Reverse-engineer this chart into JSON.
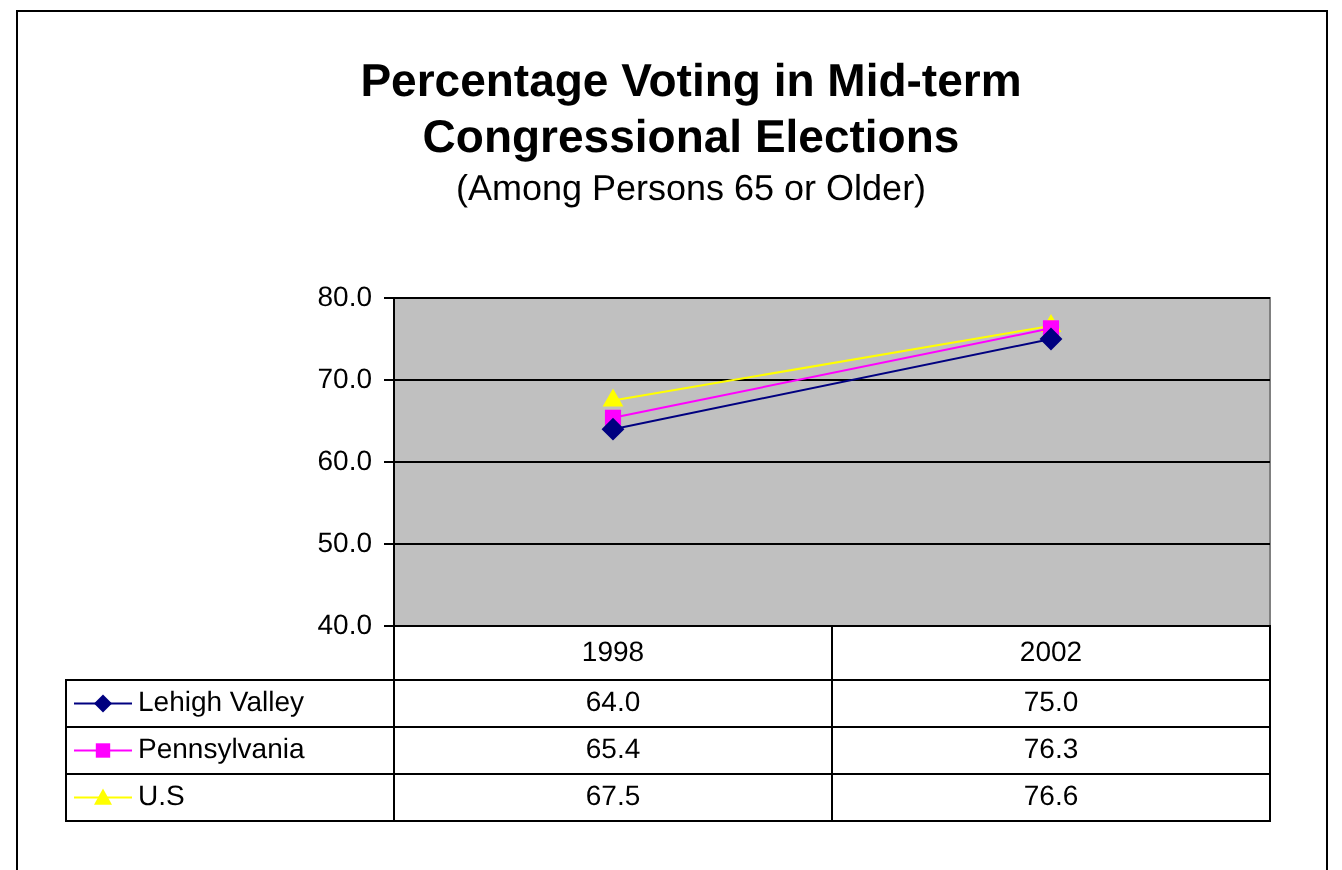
{
  "chart_data": {
    "type": "line",
    "title": "Percentage Voting in Mid-term Congressional Elections",
    "subtitle": "(Among Persons 65 or Older)",
    "categories": [
      "1998",
      "2002"
    ],
    "series": [
      {
        "name": "Lehigh Valley",
        "color": "#000080",
        "marker": "diamond",
        "values": [
          64.0,
          75.0
        ],
        "value_labels": [
          "64.0",
          "75.0"
        ]
      },
      {
        "name": "Pennsylvania",
        "color": "#ff00ff",
        "marker": "square",
        "values": [
          65.4,
          76.3
        ],
        "value_labels": [
          "65.4",
          "76.3"
        ]
      },
      {
        "name": "U.S",
        "color": "#ffff00",
        "marker": "triangle",
        "values": [
          67.5,
          76.6
        ],
        "value_labels": [
          "67.5",
          "76.6"
        ]
      }
    ],
    "ylim": [
      40,
      80
    ],
    "yticks": [
      {
        "value": 40,
        "label": "40.0"
      },
      {
        "value": 50,
        "label": "50.0"
      },
      {
        "value": 60,
        "label": "60.0"
      },
      {
        "value": 70,
        "label": "70.0"
      },
      {
        "value": 80,
        "label": "80.0"
      }
    ],
    "grid": "y",
    "legend": "bottom left"
  }
}
